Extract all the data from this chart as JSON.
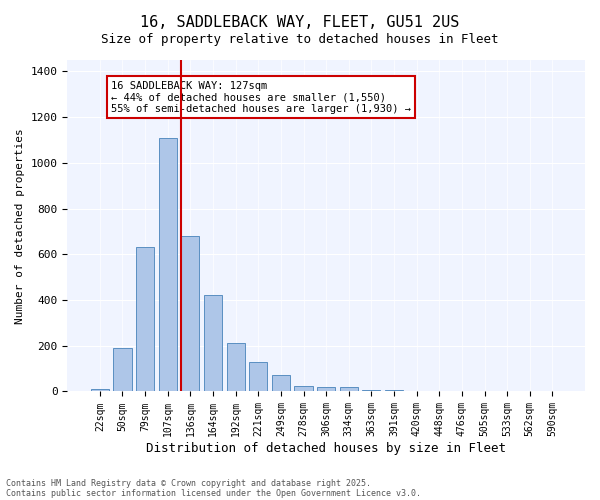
{
  "title_line1": "16, SADDLEBACK WAY, FLEET, GU51 2US",
  "title_line2": "Size of property relative to detached houses in Fleet",
  "xlabel": "Distribution of detached houses by size in Fleet",
  "ylabel": "Number of detached properties",
  "categories": [
    "22sqm",
    "50sqm",
    "79sqm",
    "107sqm",
    "136sqm",
    "164sqm",
    "192sqm",
    "221sqm",
    "249sqm",
    "278sqm",
    "306sqm",
    "334sqm",
    "363sqm",
    "391sqm",
    "420sqm",
    "448sqm",
    "476sqm",
    "505sqm",
    "533sqm",
    "562sqm",
    "590sqm"
  ],
  "values": [
    10,
    190,
    630,
    1110,
    680,
    420,
    210,
    130,
    70,
    25,
    20,
    20,
    5,
    5,
    2,
    1,
    1,
    0,
    0,
    0,
    0
  ],
  "bar_color": "#aec6e8",
  "bar_edge_color": "#5a8fc2",
  "vline_x": 4,
  "vline_color": "#cc0000",
  "annotation_text": "16 SADDLEBACK WAY: 127sqm\n← 44% of detached houses are smaller (1,550)\n55% of semi-detached houses are larger (1,930) →",
  "annotation_box_color": "#cc0000",
  "ylim": [
    0,
    1450
  ],
  "yticks": [
    0,
    200,
    400,
    600,
    800,
    1000,
    1200,
    1400
  ],
  "bg_color": "#f0f4ff",
  "footer_line1": "Contains HM Land Registry data © Crown copyright and database right 2025.",
  "footer_line2": "Contains public sector information licensed under the Open Government Licence v3.0."
}
